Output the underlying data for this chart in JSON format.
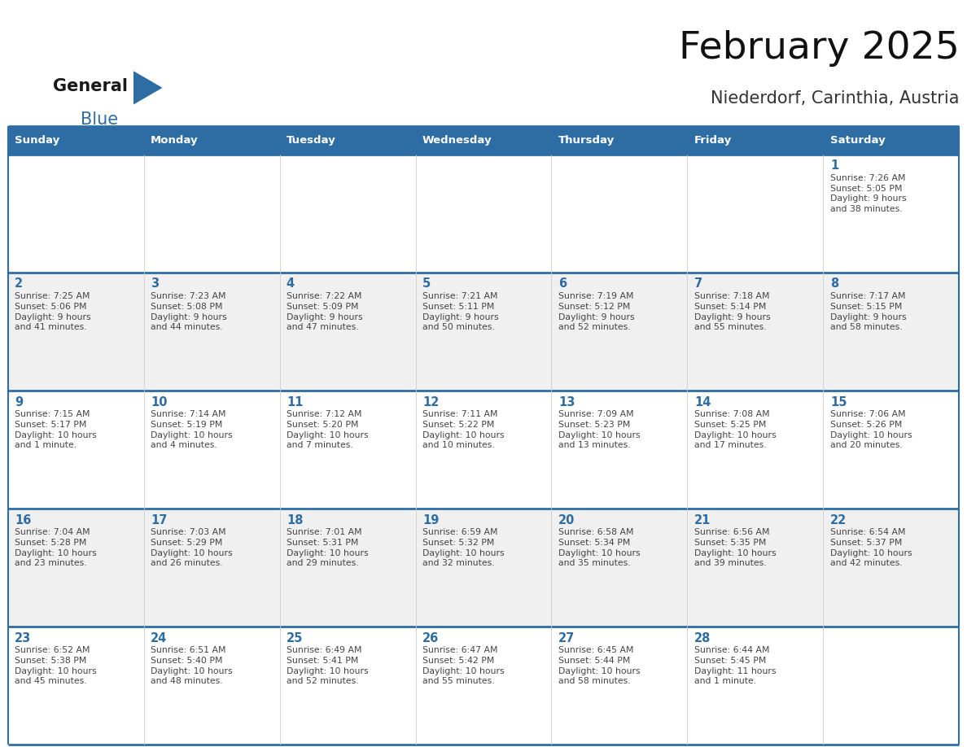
{
  "title": "February 2025",
  "subtitle": "Niederdorf, Carinthia, Austria",
  "header_bg": "#2E6DA4",
  "header_text_color": "#FFFFFF",
  "cell_bg_odd": "#FFFFFF",
  "cell_bg_even": "#F0F0F0",
  "day_number_color": "#2E6DA4",
  "info_text_color": "#444444",
  "border_color": "#2E6DA4",
  "line_color_inner": "#2E6DA4",
  "days_of_week": [
    "Sunday",
    "Monday",
    "Tuesday",
    "Wednesday",
    "Thursday",
    "Friday",
    "Saturday"
  ],
  "weeks": [
    [
      {
        "day": null,
        "sunrise": null,
        "sunset": null,
        "daylight": null
      },
      {
        "day": null,
        "sunrise": null,
        "sunset": null,
        "daylight": null
      },
      {
        "day": null,
        "sunrise": null,
        "sunset": null,
        "daylight": null
      },
      {
        "day": null,
        "sunrise": null,
        "sunset": null,
        "daylight": null
      },
      {
        "day": null,
        "sunrise": null,
        "sunset": null,
        "daylight": null
      },
      {
        "day": null,
        "sunrise": null,
        "sunset": null,
        "daylight": null
      },
      {
        "day": 1,
        "sunrise": "7:26 AM",
        "sunset": "5:05 PM",
        "daylight": "9 hours\nand 38 minutes."
      }
    ],
    [
      {
        "day": 2,
        "sunrise": "7:25 AM",
        "sunset": "5:06 PM",
        "daylight": "9 hours\nand 41 minutes."
      },
      {
        "day": 3,
        "sunrise": "7:23 AM",
        "sunset": "5:08 PM",
        "daylight": "9 hours\nand 44 minutes."
      },
      {
        "day": 4,
        "sunrise": "7:22 AM",
        "sunset": "5:09 PM",
        "daylight": "9 hours\nand 47 minutes."
      },
      {
        "day": 5,
        "sunrise": "7:21 AM",
        "sunset": "5:11 PM",
        "daylight": "9 hours\nand 50 minutes."
      },
      {
        "day": 6,
        "sunrise": "7:19 AM",
        "sunset": "5:12 PM",
        "daylight": "9 hours\nand 52 minutes."
      },
      {
        "day": 7,
        "sunrise": "7:18 AM",
        "sunset": "5:14 PM",
        "daylight": "9 hours\nand 55 minutes."
      },
      {
        "day": 8,
        "sunrise": "7:17 AM",
        "sunset": "5:15 PM",
        "daylight": "9 hours\nand 58 minutes."
      }
    ],
    [
      {
        "day": 9,
        "sunrise": "7:15 AM",
        "sunset": "5:17 PM",
        "daylight": "10 hours\nand 1 minute."
      },
      {
        "day": 10,
        "sunrise": "7:14 AM",
        "sunset": "5:19 PM",
        "daylight": "10 hours\nand 4 minutes."
      },
      {
        "day": 11,
        "sunrise": "7:12 AM",
        "sunset": "5:20 PM",
        "daylight": "10 hours\nand 7 minutes."
      },
      {
        "day": 12,
        "sunrise": "7:11 AM",
        "sunset": "5:22 PM",
        "daylight": "10 hours\nand 10 minutes."
      },
      {
        "day": 13,
        "sunrise": "7:09 AM",
        "sunset": "5:23 PM",
        "daylight": "10 hours\nand 13 minutes."
      },
      {
        "day": 14,
        "sunrise": "7:08 AM",
        "sunset": "5:25 PM",
        "daylight": "10 hours\nand 17 minutes."
      },
      {
        "day": 15,
        "sunrise": "7:06 AM",
        "sunset": "5:26 PM",
        "daylight": "10 hours\nand 20 minutes."
      }
    ],
    [
      {
        "day": 16,
        "sunrise": "7:04 AM",
        "sunset": "5:28 PM",
        "daylight": "10 hours\nand 23 minutes."
      },
      {
        "day": 17,
        "sunrise": "7:03 AM",
        "sunset": "5:29 PM",
        "daylight": "10 hours\nand 26 minutes."
      },
      {
        "day": 18,
        "sunrise": "7:01 AM",
        "sunset": "5:31 PM",
        "daylight": "10 hours\nand 29 minutes."
      },
      {
        "day": 19,
        "sunrise": "6:59 AM",
        "sunset": "5:32 PM",
        "daylight": "10 hours\nand 32 minutes."
      },
      {
        "day": 20,
        "sunrise": "6:58 AM",
        "sunset": "5:34 PM",
        "daylight": "10 hours\nand 35 minutes."
      },
      {
        "day": 21,
        "sunrise": "6:56 AM",
        "sunset": "5:35 PM",
        "daylight": "10 hours\nand 39 minutes."
      },
      {
        "day": 22,
        "sunrise": "6:54 AM",
        "sunset": "5:37 PM",
        "daylight": "10 hours\nand 42 minutes."
      }
    ],
    [
      {
        "day": 23,
        "sunrise": "6:52 AM",
        "sunset": "5:38 PM",
        "daylight": "10 hours\nand 45 minutes."
      },
      {
        "day": 24,
        "sunrise": "6:51 AM",
        "sunset": "5:40 PM",
        "daylight": "10 hours\nand 48 minutes."
      },
      {
        "day": 25,
        "sunrise": "6:49 AM",
        "sunset": "5:41 PM",
        "daylight": "10 hours\nand 52 minutes."
      },
      {
        "day": 26,
        "sunrise": "6:47 AM",
        "sunset": "5:42 PM",
        "daylight": "10 hours\nand 55 minutes."
      },
      {
        "day": 27,
        "sunrise": "6:45 AM",
        "sunset": "5:44 PM",
        "daylight": "10 hours\nand 58 minutes."
      },
      {
        "day": 28,
        "sunrise": "6:44 AM",
        "sunset": "5:45 PM",
        "daylight": "11 hours\nand 1 minute."
      },
      {
        "day": null,
        "sunrise": null,
        "sunset": null,
        "daylight": null
      }
    ]
  ],
  "logo_general_color": "#1a1a1a",
  "logo_blue_color": "#2E6DA4",
  "logo_triangle_color": "#2E6DA4"
}
